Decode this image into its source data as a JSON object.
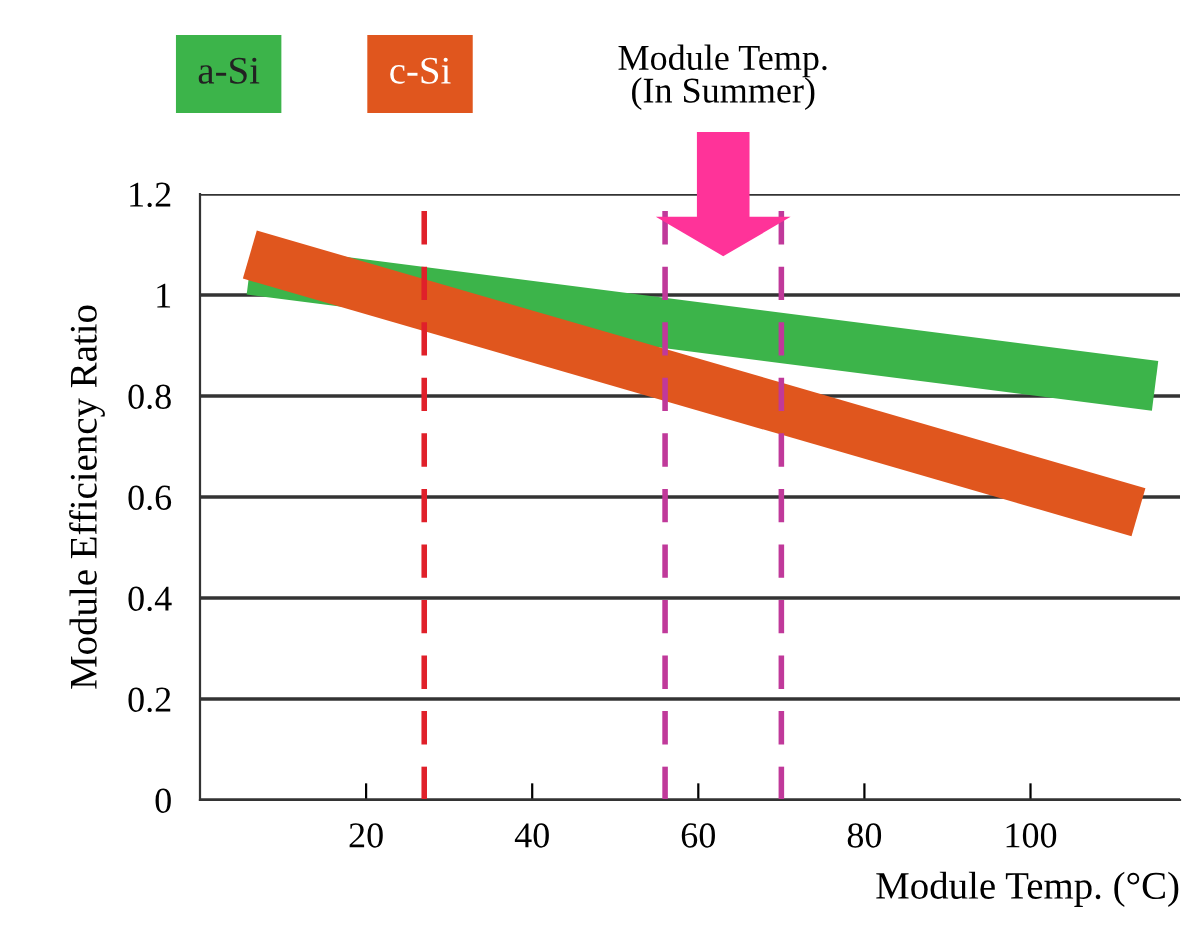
{
  "chart_data": {
    "type": "line",
    "xlabel": "Module Temp. (°C)",
    "ylabel": "Module Efficiency Ratio",
    "series": [
      {
        "name": "a-Si",
        "color": "#3cb44a",
        "x": [
          6,
          115
        ],
        "values": [
          1.05,
          0.82
        ]
      },
      {
        "name": "c-Si",
        "color": "#e0561e",
        "x": [
          6,
          113
        ],
        "values": [
          1.08,
          0.57
        ]
      }
    ],
    "xlim": [
      0,
      118
    ],
    "xticks": [
      20,
      40,
      60,
      80,
      100
    ],
    "ylim": [
      0,
      1.2
    ],
    "yticks": [
      0,
      0.2,
      0.4,
      0.6,
      0.8,
      1,
      1.2
    ],
    "grid": "y",
    "legend": "top left",
    "line_style": "solid",
    "marker": "none",
    "ref_lines": [
      {
        "axis": "x",
        "value": 27,
        "color": "#e0202a",
        "line_style": "dashed"
      },
      {
        "axis": "x",
        "value": 56,
        "color": "#c0399a",
        "line_style": "dashed"
      },
      {
        "axis": "x",
        "value": 70,
        "color": "#c0399a",
        "line_style": "dashed"
      }
    ],
    "annotations": [
      "Module Temp.\n(In Summer)"
    ]
  }
}
